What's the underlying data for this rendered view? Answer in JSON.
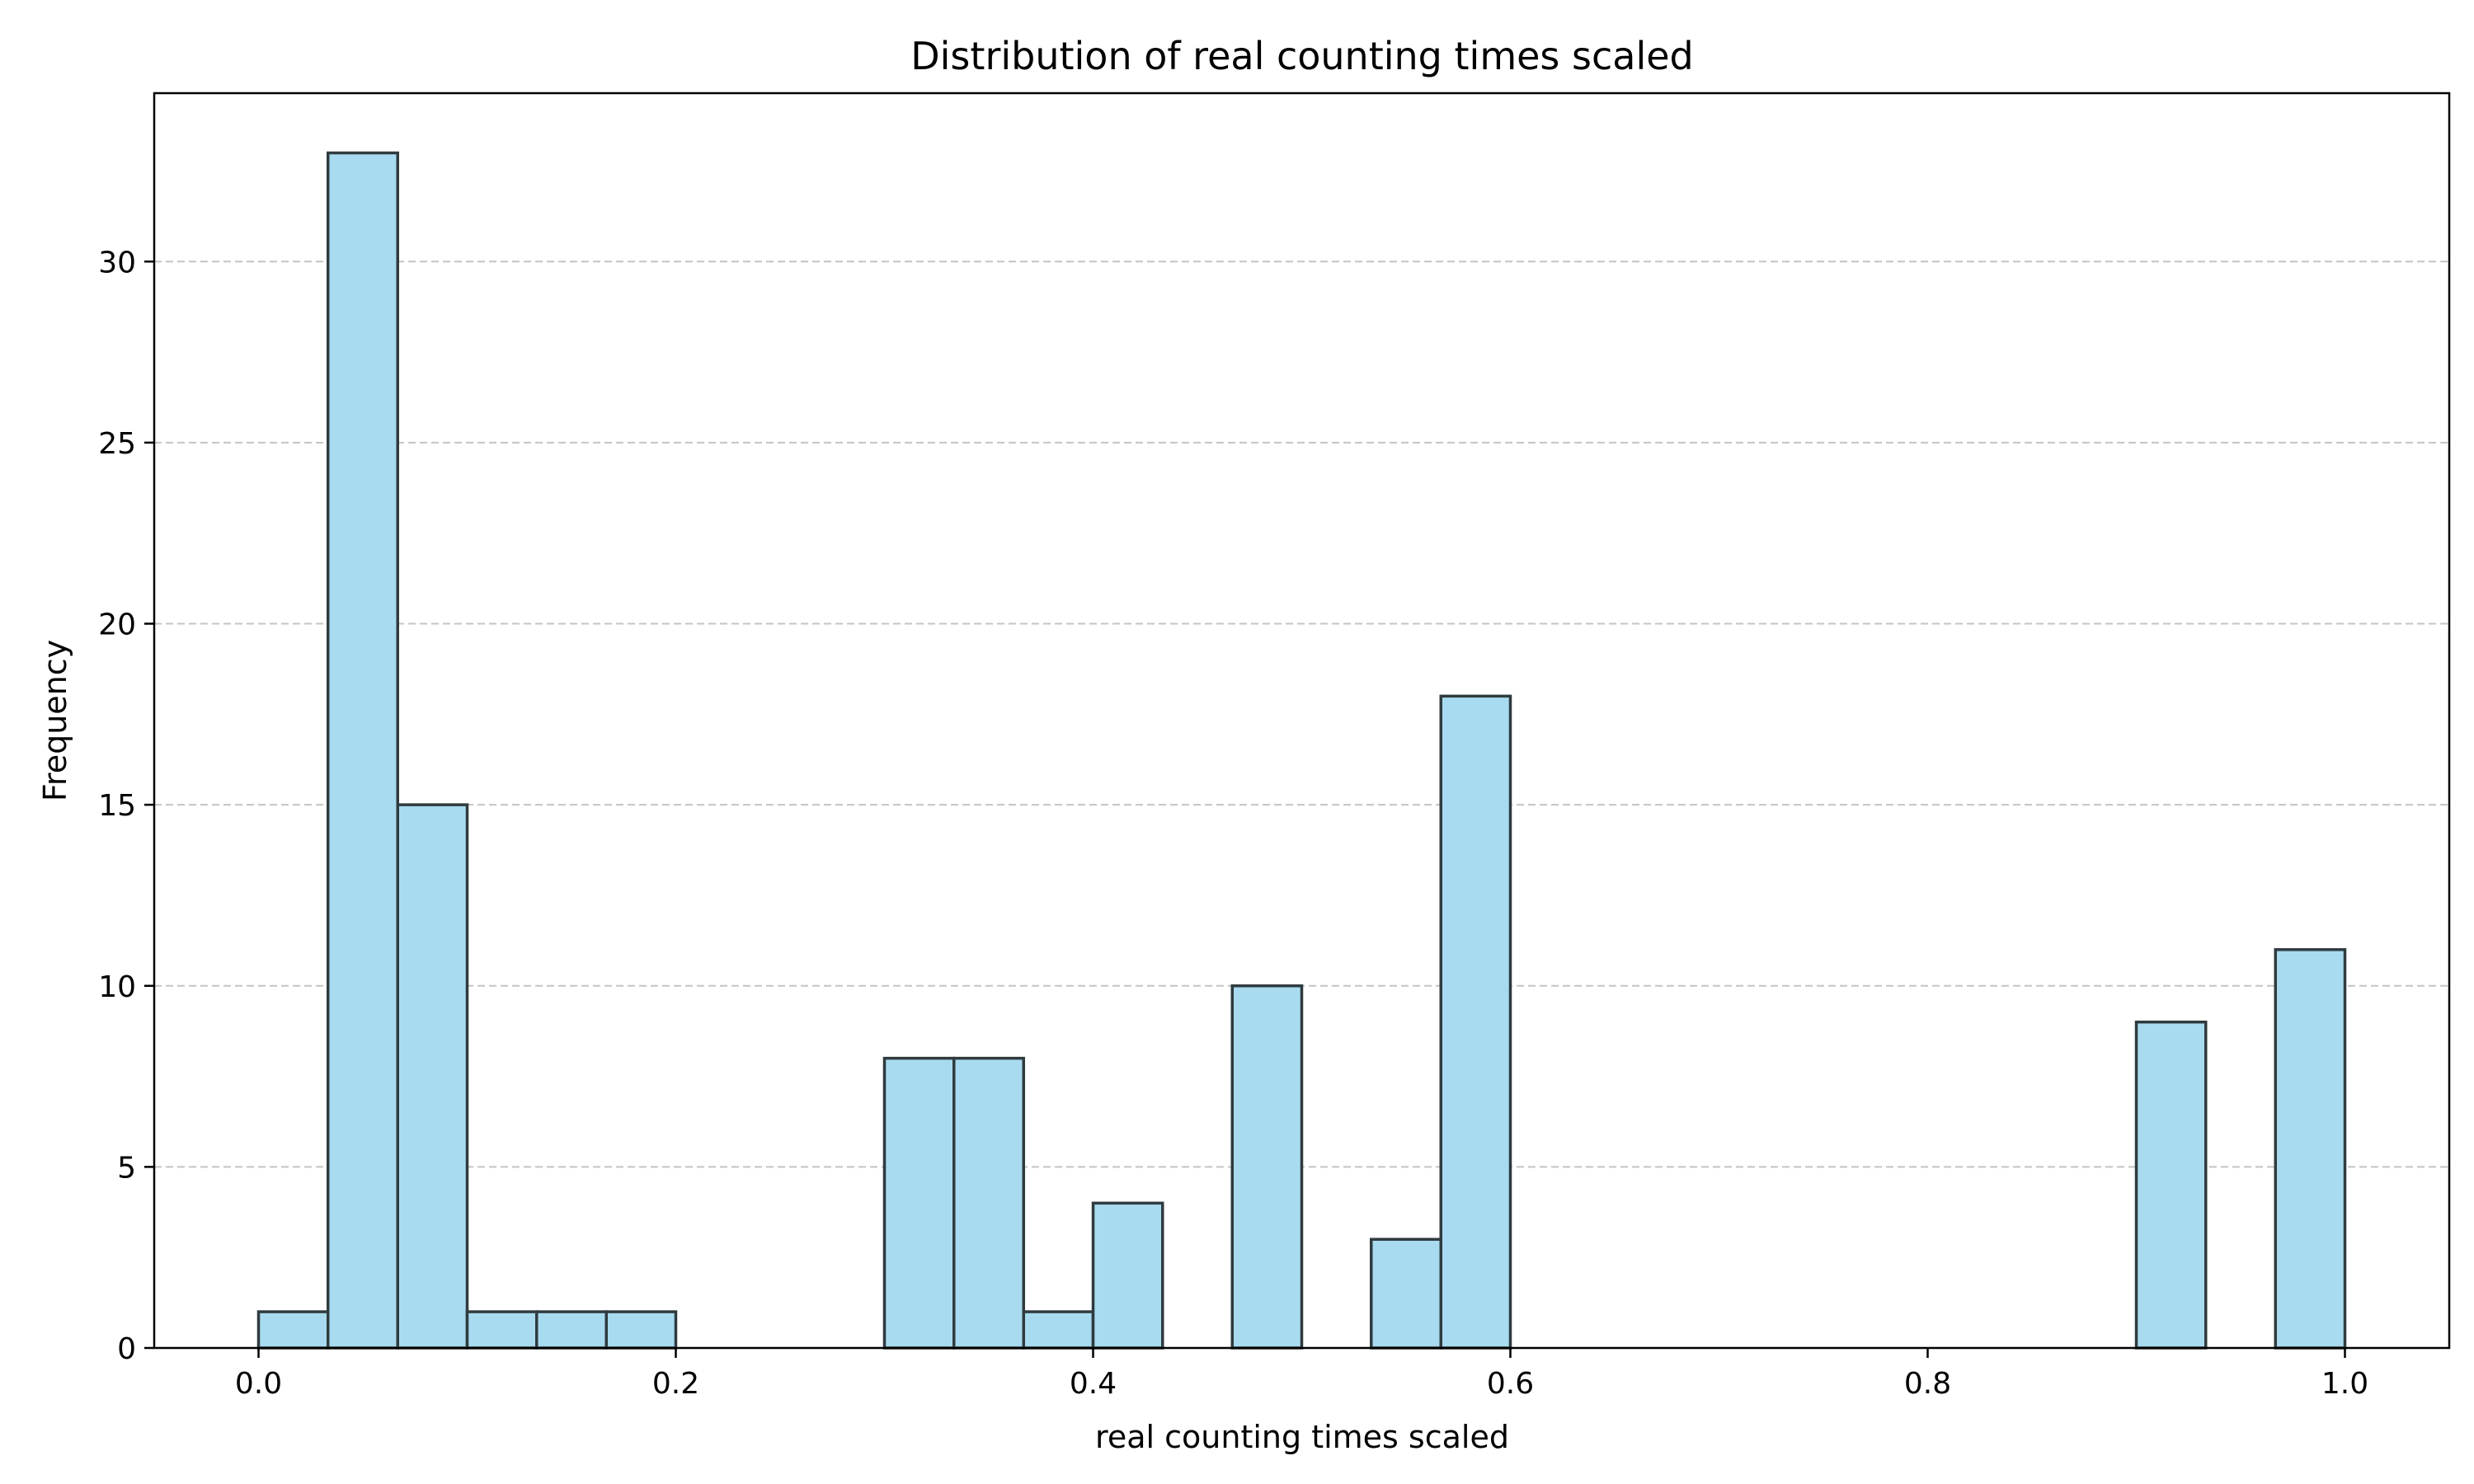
{
  "chart_data": {
    "type": "bar",
    "title": "Distribution of real counting times scaled",
    "xlabel": "real counting times scaled",
    "ylabel": "Frequency",
    "xlim": [
      -0.05,
      1.05
    ],
    "ylim": [
      0,
      34.65
    ],
    "grid": {
      "y": true,
      "x": false,
      "style": "dashed"
    },
    "bar_color": "#a8dbef",
    "edge_color": "#2f3b3f",
    "grid_color": "#c4c4c4",
    "x_ticks": [
      {
        "value": 0.0,
        "label": "0.0"
      },
      {
        "value": 0.2,
        "label": "0.2"
      },
      {
        "value": 0.4,
        "label": "0.4"
      },
      {
        "value": 0.6,
        "label": "0.6"
      },
      {
        "value": 0.8,
        "label": "0.8"
      },
      {
        "value": 1.0,
        "label": "1.0"
      }
    ],
    "y_ticks": [
      {
        "value": 0,
        "label": "0"
      },
      {
        "value": 5,
        "label": "5"
      },
      {
        "value": 10,
        "label": "10"
      },
      {
        "value": 15,
        "label": "15"
      },
      {
        "value": 20,
        "label": "20"
      },
      {
        "value": 25,
        "label": "25"
      },
      {
        "value": 30,
        "label": "30"
      }
    ],
    "bin_edges": [
      0.0,
      0.0333,
      0.0667,
      0.1,
      0.1333,
      0.1667,
      0.2,
      0.2333,
      0.2667,
      0.3,
      0.3333,
      0.3667,
      0.4,
      0.4333,
      0.4667,
      0.5,
      0.5333,
      0.5667,
      0.6,
      0.6333,
      0.6667,
      0.7,
      0.7333,
      0.7667,
      0.8,
      0.8333,
      0.8667,
      0.9,
      0.9333,
      0.9667,
      1.0
    ],
    "counts": [
      1,
      33,
      15,
      1,
      1,
      1,
      0,
      0,
      0,
      8,
      8,
      1,
      4,
      0,
      10,
      0,
      3,
      18,
      0,
      0,
      0,
      0,
      0,
      0,
      0,
      0,
      0,
      9,
      0,
      11
    ]
  }
}
